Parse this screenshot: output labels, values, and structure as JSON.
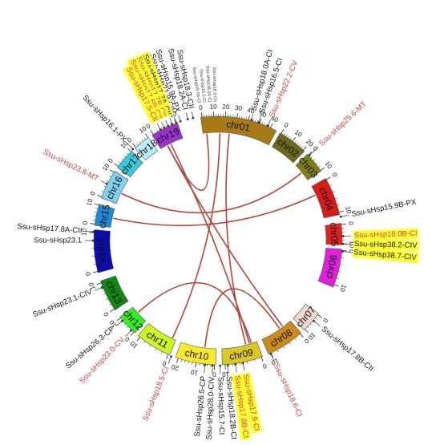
{
  "colors": {
    "link": "#b5453a",
    "label_black": "#111111",
    "label_red": "#d0413a",
    "highlight": "#ffff33"
  },
  "chromosomes": [
    {
      "name": "chr01",
      "color": "#a77a16",
      "ticks": [
        "0",
        "10",
        "20",
        "30",
        "40",
        "50",
        "60"
      ]
    },
    {
      "name": "chr02",
      "color": "#6b6b1b",
      "ticks": [
        "0",
        "10",
        "20"
      ]
    },
    {
      "name": "chr03",
      "color": "#7f7f16",
      "ticks": [
        "0",
        "10"
      ]
    },
    {
      "name": "chr04",
      "color": "#d81c1c",
      "ticks": [
        "0",
        "10"
      ]
    },
    {
      "name": "chr05",
      "color": "#e22222",
      "ticks": [
        "0",
        "10"
      ]
    },
    {
      "name": "chr06",
      "color": "#e01ee0",
      "ticks": [
        "0",
        "10"
      ]
    },
    {
      "name": "chr07",
      "color": "#f2d8cc",
      "ticks": [
        "0",
        "10"
      ]
    },
    {
      "name": "chr08",
      "color": "#cc8a1a",
      "ticks": [
        "0",
        "10"
      ]
    },
    {
      "name": "chr09",
      "color": "#ddc822",
      "ticks": [
        "0",
        "10"
      ]
    },
    {
      "name": "chr10",
      "color": "#f5ea27",
      "ticks": [
        "0",
        "10",
        "20"
      ]
    },
    {
      "name": "chr11",
      "color": "#ccf522",
      "ticks": [
        "0",
        "10"
      ]
    },
    {
      "name": "chr12",
      "color": "#33ee22",
      "ticks": [
        "0",
        "10"
      ]
    },
    {
      "name": "chr13",
      "color": "#118811",
      "ticks": [
        "0",
        "10"
      ]
    },
    {
      "name": "chr14",
      "color": "#0c0ca6",
      "ticks": [
        "0",
        "10"
      ]
    },
    {
      "name": "chr15",
      "color": "#1b8ad6",
      "ticks": [
        "0",
        "10"
      ]
    },
    {
      "name": "chr16",
      "color": "#7fd0ee",
      "ticks": [
        "0",
        "10"
      ]
    },
    {
      "name": "chr17",
      "color": "#33ccdd",
      "ticks": [
        "0",
        "10"
      ]
    },
    {
      "name": "chr18",
      "color": "#b8eeff",
      "ticks": [
        "0",
        "10"
      ]
    },
    {
      "name": "chr19",
      "color": "#9a33cc",
      "ticks": [
        "0",
        "10"
      ]
    }
  ],
  "gene_labels": [
    {
      "text": "Ssu-sHsp15.9A-PX",
      "color": "black",
      "highlight": false
    },
    {
      "text": "Ssu-sHsp18.0A-CI",
      "color": "black",
      "highlight": false
    },
    {
      "text": "Ssu-sHsp18.2A-CI",
      "color": "black",
      "highlight": false
    },
    {
      "text": "Ssu-sHsp16.5-CI",
      "color": "black",
      "highlight": false
    },
    {
      "text": "Ssu-sHsp18.3-CII",
      "color": "black",
      "highlight": false
    },
    {
      "text": "Ssu-sHsp21.9-CIV",
      "color": "black",
      "highlight": false
    },
    {
      "text": "Ssu-sHsp17.7A-CII",
      "color": "black",
      "highlight": true
    },
    {
      "text": "Ssu-sHsp17.7B-CII",
      "color": "red",
      "highlight": true
    },
    {
      "text": "Ssu-sHsp17.6B-CII",
      "color": "red",
      "highlight": true
    },
    {
      "text": "Ssu-sHsp17.5-CII",
      "color": "red",
      "highlight": true
    },
    {
      "text": "Ssu-sHsp16.1-PX",
      "color": "black",
      "highlight": false
    },
    {
      "text": "Ssu-sHsp22.2-CV",
      "color": "red",
      "highlight": false
    },
    {
      "text": "Ssu-sHsp25.6-MT",
      "color": "red",
      "highlight": false
    },
    {
      "text": "Ssu-sHsp23.8-MT",
      "color": "red",
      "highlight": false
    },
    {
      "text": "Ssu-sHsp15.9B-PX",
      "color": "black",
      "highlight": false
    },
    {
      "text": "Ssu-sHsp18.0B-CI",
      "color": "red",
      "highlight": true
    },
    {
      "text": "Ssu-sHsp38.2-CIV",
      "color": "black",
      "highlight": true
    },
    {
      "text": "Ssu-sHsp38.7-CIV",
      "color": "black",
      "highlight": true
    },
    {
      "text": "Ssu-sHsp23.1",
      "color": "black",
      "highlight": false
    },
    {
      "text": "Ssu-sHsp17.8A-CII",
      "color": "black",
      "highlight": false
    },
    {
      "text": "Ssu-sHsp23.1-CIV",
      "color": "black",
      "highlight": false
    },
    {
      "text": "Ssu-sHsp26.3-CP",
      "color": "black",
      "highlight": false
    },
    {
      "text": "Ssu-sHsp23.0-CV",
      "color": "red",
      "highlight": false
    },
    {
      "text": "Ssu-sHsp18.5-CI",
      "color": "red",
      "highlight": false
    },
    {
      "text": "Ssu-sHsp26.5-CP",
      "color": "black",
      "highlight": false
    },
    {
      "text": "Ssu-sHsp28.0-CIV",
      "color": "black",
      "highlight": false
    },
    {
      "text": "Ssu-sHsp15.7-CI",
      "color": "black",
      "highlight": false
    },
    {
      "text": "Ssu-sHsp18.2B-CI",
      "color": "black",
      "highlight": false
    },
    {
      "text": "Ssu-sHsp17.8B-CI",
      "color": "red",
      "highlight": true
    },
    {
      "text": "Ssu-sHsp17.9-CI",
      "color": "red",
      "highlight": true
    },
    {
      "text": "Ssu-sHsp18.6-CI",
      "color": "red",
      "highlight": false
    },
    {
      "text": "Ssu-sHsp17.8B-CII",
      "color": "black",
      "highlight": false
    }
  ],
  "tiny_labels": [
    "Ssu-sHsp18.0A-CI",
    "Ssu-sHsp16.5-CI",
    "Ssu-sHsp18.2A-CI",
    "Ssu-sHsp18.3-CII"
  ],
  "links": [
    {
      "from": "chr01",
      "to": "chr19"
    },
    {
      "from": "chr01",
      "to": "chr11"
    },
    {
      "from": "chr01",
      "to": "chr09"
    },
    {
      "from": "chr19",
      "to": "chr09"
    },
    {
      "from": "chr19",
      "to": "chr08"
    },
    {
      "from": "chr03",
      "to": "chr16"
    },
    {
      "from": "chr04",
      "to": "chr15"
    },
    {
      "from": "chr10",
      "to": "chr08"
    },
    {
      "from": "chr12",
      "to": "chr09"
    }
  ]
}
